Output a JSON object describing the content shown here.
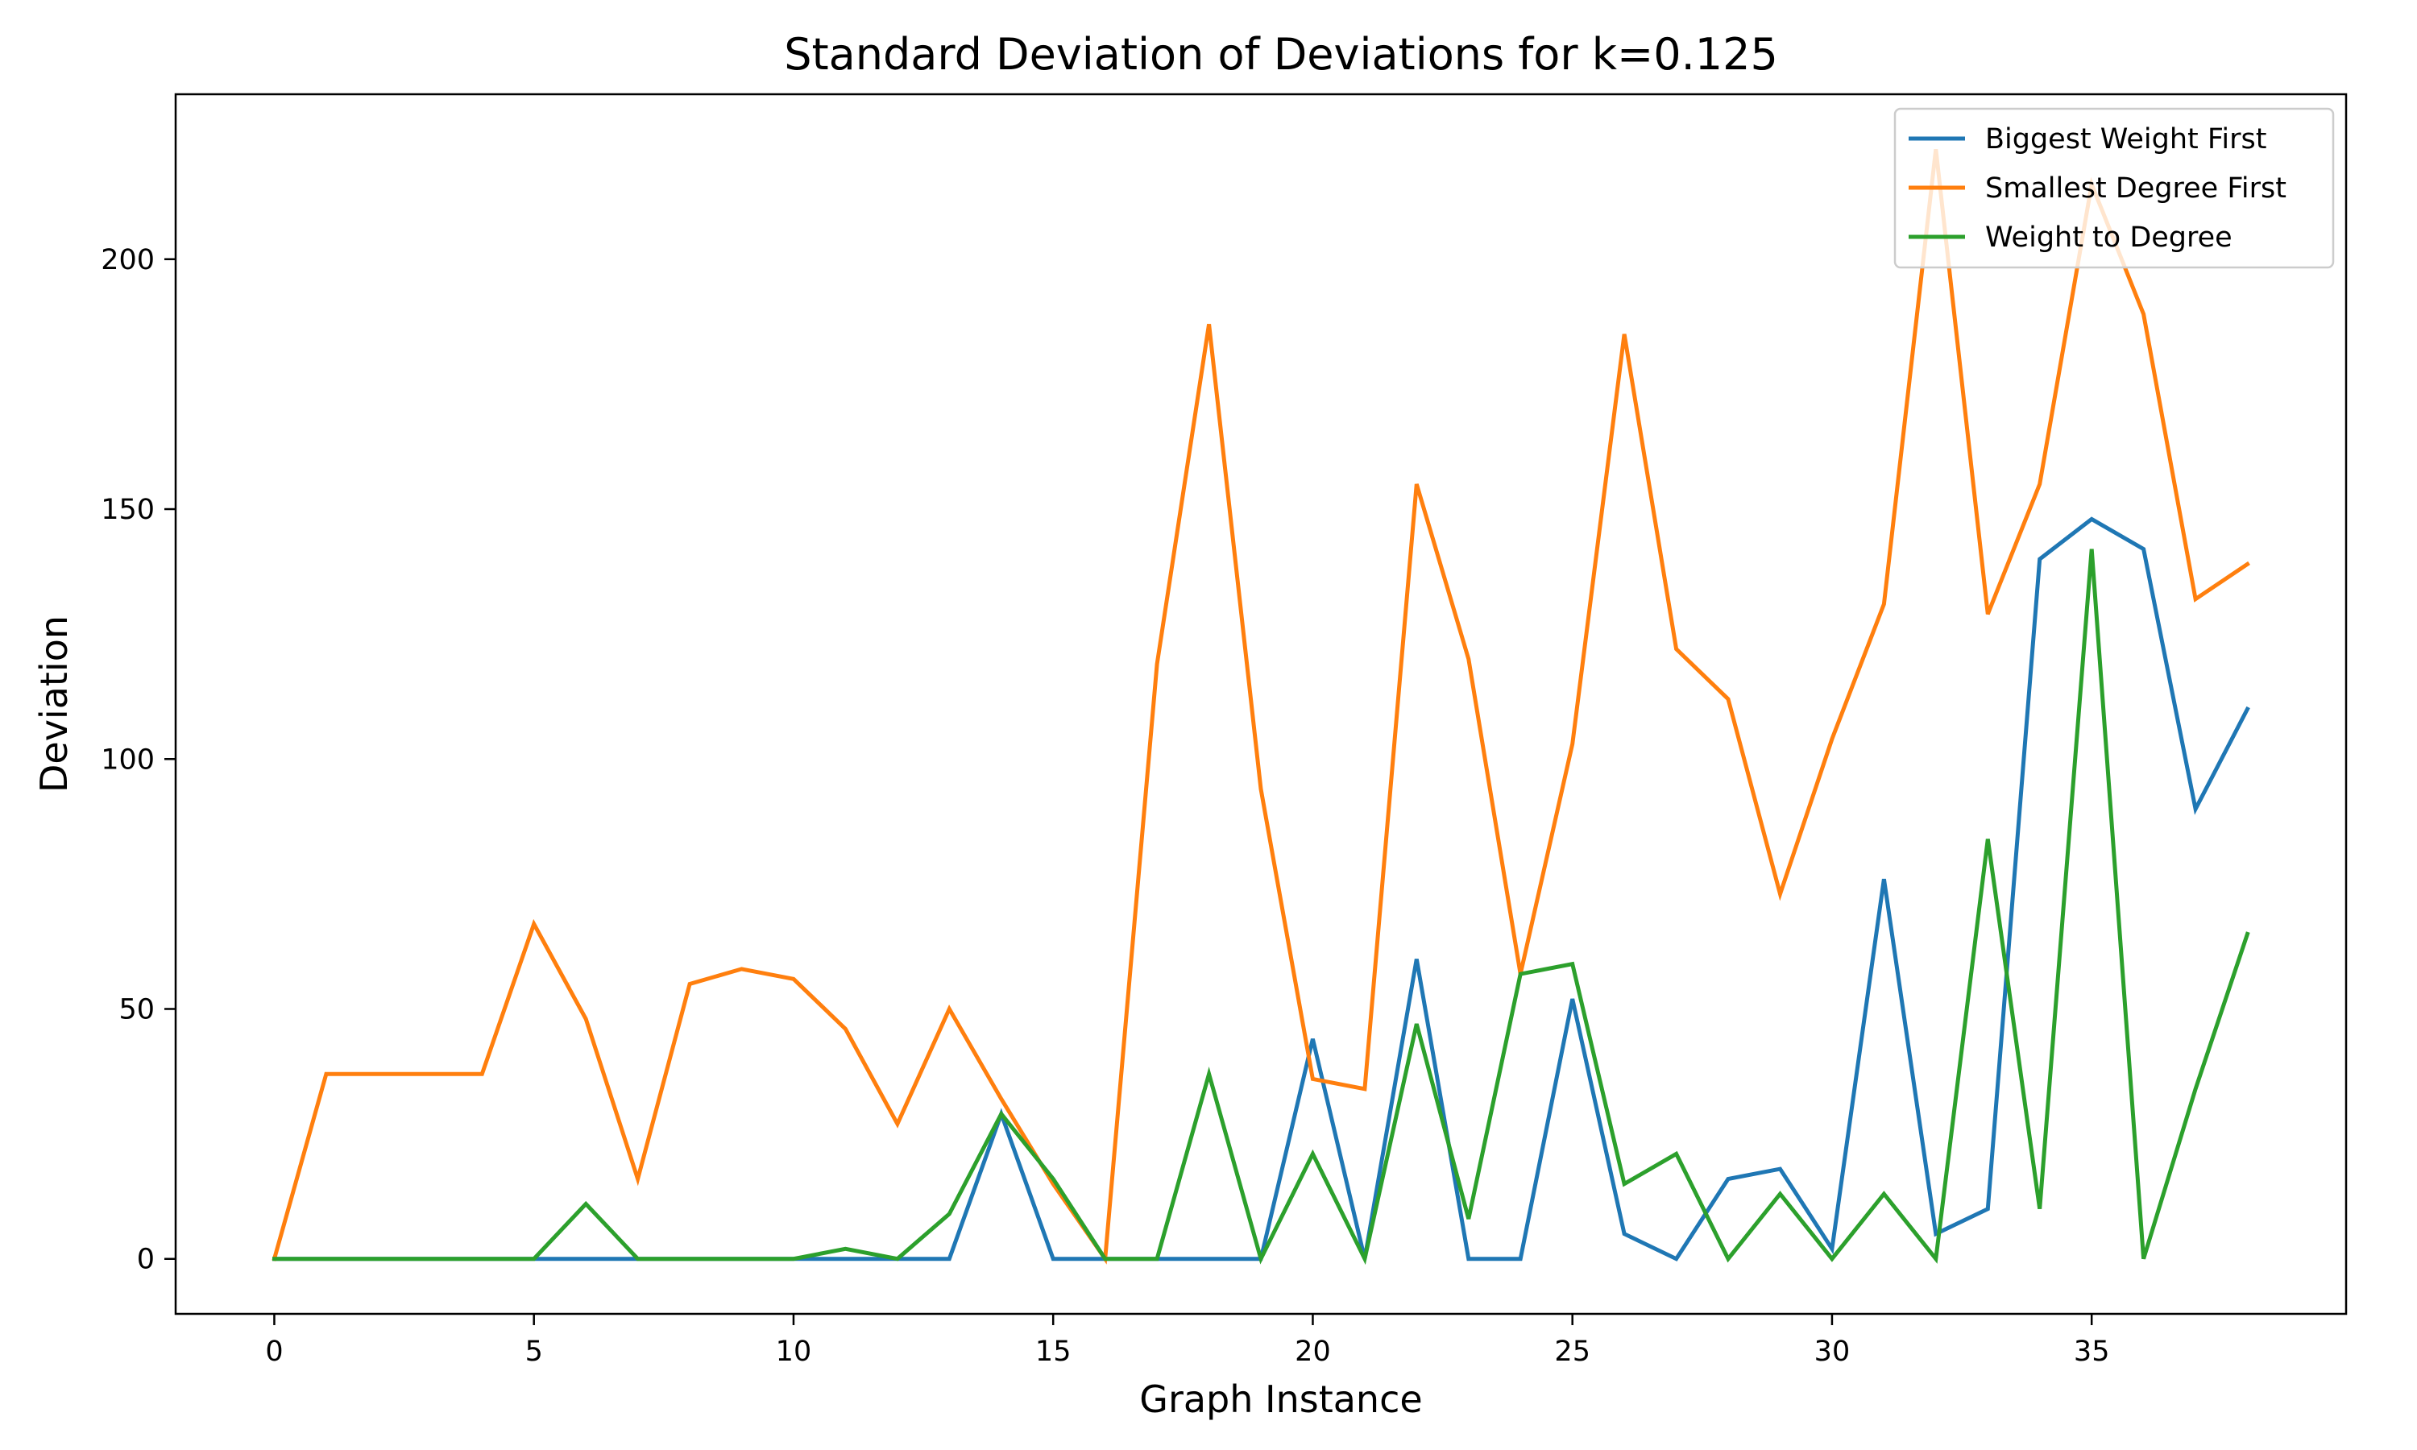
{
  "chart_data": {
    "type": "line",
    "title": "Standard Deviation of Deviations for k=0.125",
    "xlabel": "Graph Instance",
    "ylabel": "Deviation",
    "xlim": [
      -1.9,
      39.9
    ],
    "ylim": [
      -11,
      233
    ],
    "xticks": [
      0,
      5,
      10,
      15,
      20,
      25,
      30,
      35
    ],
    "yticks": [
      0,
      50,
      100,
      150,
      200
    ],
    "grid": false,
    "legend_position": "top-right",
    "x": [
      0,
      1,
      2,
      3,
      4,
      5,
      6,
      7,
      8,
      9,
      10,
      11,
      12,
      13,
      14,
      15,
      16,
      17,
      18,
      19,
      20,
      21,
      22,
      23,
      24,
      25,
      26,
      27,
      28,
      29,
      30,
      31,
      32,
      33,
      34,
      35,
      36,
      37,
      38
    ],
    "series": [
      {
        "name": "Biggest Weight First",
        "color": "#1f77b4",
        "values": [
          0,
          0,
          0,
          0,
          0,
          0,
          0,
          0,
          0,
          0,
          0,
          0,
          0,
          0,
          29,
          0,
          0,
          0,
          0,
          0,
          44,
          0,
          60,
          0,
          0,
          52,
          5,
          0,
          16,
          18,
          2,
          76,
          5,
          10,
          140,
          148,
          142,
          90,
          110
        ]
      },
      {
        "name": "Smallest Degree First",
        "color": "#ff7f0e",
        "values": [
          0,
          37,
          37,
          37,
          37,
          67,
          48,
          16,
          55,
          58,
          56,
          46,
          27,
          50,
          32,
          15,
          0,
          119,
          187,
          94,
          36,
          34,
          155,
          120,
          57,
          103,
          185,
          122,
          112,
          73,
          104,
          131,
          222,
          129,
          155,
          215,
          189,
          132,
          139
        ]
      },
      {
        "name": "Weight to Degree",
        "color": "#2ca02c",
        "values": [
          0,
          0,
          0,
          0,
          0,
          0,
          11,
          0,
          0,
          0,
          0,
          2,
          0,
          9,
          29,
          16,
          0,
          0,
          37,
          0,
          21,
          0,
          47,
          8,
          57,
          59,
          15,
          21,
          0,
          13,
          0,
          13,
          0,
          84,
          10,
          142,
          0,
          34,
          65
        ]
      }
    ]
  }
}
